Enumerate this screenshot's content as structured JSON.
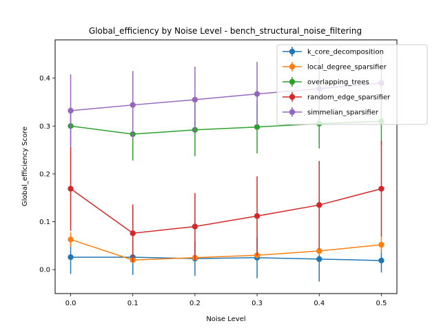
{
  "chart_data": {
    "type": "line",
    "title": "Global_efficiency by Noise Level - bench_structural_noise_filtering",
    "xlabel": "Noise Level",
    "ylabel": "Global_efficiency Score",
    "x": [
      0.0,
      0.1,
      0.2,
      0.3,
      0.4,
      0.5
    ],
    "x_tick_labels": [
      "0.0",
      "0.1",
      "0.2",
      "0.3",
      "0.4",
      "0.5"
    ],
    "y_ticks": [
      0.0,
      0.1,
      0.2,
      0.3,
      0.4
    ],
    "y_tick_labels": [
      "0.0",
      "0.1",
      "0.2",
      "0.3",
      "0.4"
    ],
    "xlim": [
      -0.025,
      0.525
    ],
    "ylim": [
      -0.05,
      0.48
    ],
    "grid": false,
    "legend_position": "top-right",
    "series": [
      {
        "name": "k_core_decomposition",
        "color": "#1f77b4",
        "values": [
          0.026,
          0.026,
          0.023,
          0.025,
          0.022,
          0.019
        ],
        "errors": [
          0.035,
          0.037,
          0.036,
          0.043,
          0.047,
          0.025
        ]
      },
      {
        "name": "local_degree_sparsifier",
        "color": "#ff7f0e",
        "values": [
          0.063,
          0.02,
          0.025,
          0.03,
          0.039,
          0.052
        ],
        "errors": [
          0.015,
          0.004,
          0.004,
          0.006,
          0.009,
          0.017
        ]
      },
      {
        "name": "overlapping_trees",
        "color": "#2ca02c",
        "values": [
          0.3,
          0.283,
          0.292,
          0.298,
          0.305,
          0.31
        ],
        "errors": [
          0.04,
          0.055,
          0.055,
          0.055,
          0.052,
          0.05
        ]
      },
      {
        "name": "random_edge_sparsifier",
        "color": "#d62728",
        "values": [
          0.169,
          0.076,
          0.09,
          0.112,
          0.135,
          0.169
        ],
        "errors": [
          0.088,
          0.06,
          0.07,
          0.083,
          0.092,
          0.1
        ]
      },
      {
        "name": "simmelian_sparsifier",
        "color": "#9467bd",
        "values": [
          0.332,
          0.344,
          0.355,
          0.367,
          0.378,
          0.39
        ],
        "errors": [
          0.076,
          0.071,
          0.069,
          0.067,
          0.066,
          0.065
        ]
      }
    ]
  }
}
